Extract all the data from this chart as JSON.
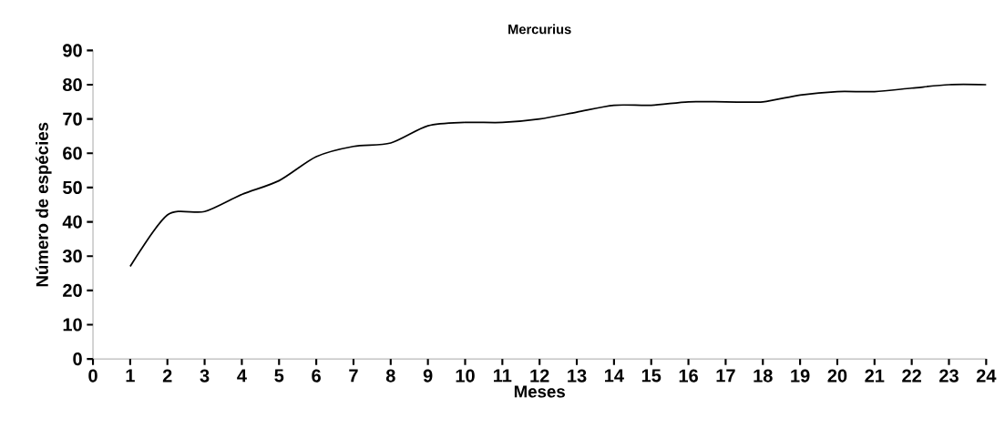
{
  "chart_data": {
    "type": "line",
    "title": "Mercurius",
    "xlabel": "Meses",
    "ylabel": "Número de espécies",
    "x": [
      1,
      2,
      3,
      4,
      5,
      6,
      7,
      8,
      9,
      10,
      11,
      12,
      13,
      14,
      15,
      16,
      17,
      18,
      19,
      20,
      21,
      22,
      23,
      24
    ],
    "values": [
      27,
      42,
      43,
      48,
      52,
      59,
      62,
      63,
      68,
      69,
      69,
      70,
      72,
      74,
      74,
      75,
      75,
      75,
      77,
      78,
      78,
      79,
      80,
      80
    ],
    "color": "#000000",
    "xlim": [
      0,
      24
    ],
    "ylim": [
      0,
      90
    ],
    "xticks": [
      0,
      1,
      2,
      3,
      4,
      5,
      6,
      7,
      8,
      9,
      10,
      11,
      12,
      13,
      14,
      15,
      16,
      17,
      18,
      19,
      20,
      21,
      22,
      23,
      24
    ],
    "yticks": [
      0,
      10,
      20,
      30,
      40,
      50,
      60,
      70,
      80,
      90
    ]
  }
}
